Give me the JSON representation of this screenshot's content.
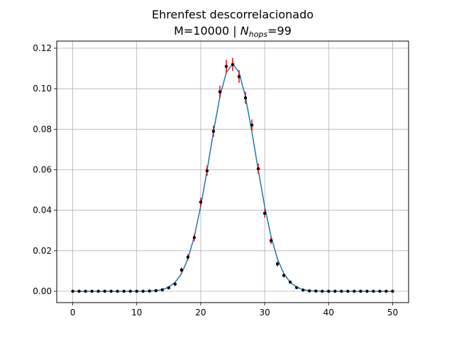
{
  "chart_data": {
    "type": "scatter",
    "title_line1": "Ehrenfest descorrelacionado",
    "title_line2_prefix": "M=10000 | ",
    "title_line2_var": "N",
    "title_line2_sub": "hops",
    "title_line2_suffix": "=99",
    "xlabel": "",
    "ylabel": "",
    "xlim": [
      -2.5,
      52.5
    ],
    "ylim": [
      -0.0056,
      0.1235
    ],
    "grid": true,
    "x_ticks": [
      0,
      10,
      20,
      30,
      40,
      50
    ],
    "y_ticks": [
      0.0,
      0.02,
      0.04,
      0.06,
      0.08,
      0.1,
      0.12
    ],
    "x_tick_labels": [
      "0",
      "10",
      "20",
      "30",
      "40",
      "50"
    ],
    "y_tick_labels": [
      "0.00",
      "0.02",
      "0.04",
      "0.06",
      "0.08",
      "0.10",
      "0.12"
    ],
    "colors": {
      "line": "#1f77b4",
      "errorbar": "#ff0000",
      "point": "#000000",
      "grid": "#b0b0b0"
    },
    "series": [
      {
        "kind": "errorbar-scatter",
        "x": [
          0,
          1,
          2,
          3,
          4,
          5,
          6,
          7,
          8,
          9,
          10,
          11,
          12,
          13,
          14,
          15,
          16,
          17,
          18,
          19,
          20,
          21,
          22,
          23,
          24,
          25,
          26,
          27,
          28,
          29,
          30,
          31,
          32,
          33,
          34,
          35,
          36,
          37,
          38,
          39,
          40,
          41,
          42,
          43,
          44,
          45,
          46,
          47,
          48,
          49,
          50
        ],
        "y": [
          0,
          0,
          0,
          0,
          0,
          0,
          0,
          0,
          0,
          0,
          0,
          0,
          0.0001,
          0.0003,
          0.0007,
          0.0017,
          0.0035,
          0.0105,
          0.0168,
          0.0265,
          0.044,
          0.0595,
          0.079,
          0.0985,
          0.111,
          0.112,
          0.106,
          0.0955,
          0.082,
          0.0605,
          0.0385,
          0.025,
          0.0135,
          0.0078,
          0.0045,
          0.0018,
          0.0006,
          0.0002,
          0.0001,
          0,
          0,
          0,
          0,
          0,
          0,
          0,
          0,
          0,
          0,
          0,
          0
        ],
        "err": [
          0,
          0,
          0,
          0,
          0,
          0,
          0,
          0,
          0,
          0,
          0,
          0,
          0.0001,
          0.0002,
          0.0003,
          0.0005,
          0.0008,
          0.0012,
          0.0015,
          0.0018,
          0.0022,
          0.0025,
          0.0028,
          0.003,
          0.0032,
          0.0032,
          0.0031,
          0.003,
          0.0028,
          0.0025,
          0.0021,
          0.0017,
          0.0013,
          0.001,
          0.0007,
          0.0004,
          0.0003,
          0.0002,
          0.0001,
          0,
          0,
          0,
          0,
          0,
          0,
          0,
          0,
          0,
          0,
          0,
          0
        ]
      },
      {
        "kind": "line",
        "x": [
          0,
          1,
          2,
          3,
          4,
          5,
          6,
          7,
          8,
          9,
          10,
          11,
          12,
          13,
          14,
          15,
          16,
          17,
          18,
          19,
          20,
          21,
          22,
          23,
          24,
          25,
          26,
          27,
          28,
          29,
          30,
          31,
          32,
          33,
          34,
          35,
          36,
          37,
          38,
          39,
          40,
          41,
          42,
          43,
          44,
          45,
          46,
          47,
          48,
          49,
          50
        ],
        "y": [
          0,
          0,
          0,
          0,
          0,
          0,
          0,
          0,
          0,
          0,
          0,
          0,
          0.0001,
          0.0003,
          0.0008,
          0.002,
          0.0044,
          0.0087,
          0.016,
          0.027,
          0.0419,
          0.0598,
          0.0788,
          0.096,
          0.108,
          0.1123,
          0.108,
          0.096,
          0.0788,
          0.0598,
          0.0419,
          0.027,
          0.016,
          0.0087,
          0.0044,
          0.002,
          0.0008,
          0.0003,
          0.0001,
          0,
          0,
          0,
          0,
          0,
          0,
          0,
          0,
          0,
          0,
          0,
          0
        ]
      }
    ]
  }
}
